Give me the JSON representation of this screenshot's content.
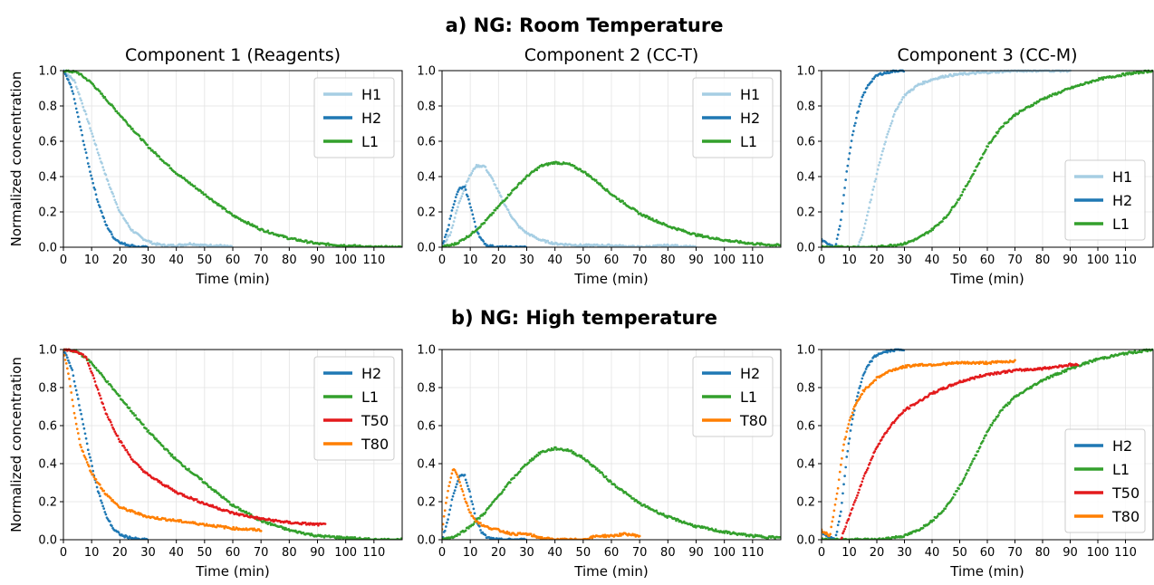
{
  "figure": {
    "row_titles": [
      "a) NG: Room Temperature",
      "b) NG: High temperature"
    ]
  },
  "colors": {
    "H1": "#a6cee3",
    "H2": "#1f78b4",
    "L1": "#33a02c",
    "T50": "#e31a1c",
    "T80": "#ff7f00"
  },
  "chart_data": [
    {
      "type": "scatter",
      "title": "Component 1 (Reagents)",
      "xlabel": "Time (min)",
      "ylabel": "Normalized concentration",
      "xlim": [
        0,
        120
      ],
      "ylim": [
        0,
        1
      ],
      "xticks": [
        0,
        10,
        20,
        30,
        40,
        50,
        60,
        70,
        80,
        90,
        100,
        110
      ],
      "yticks": [
        0.0,
        0.2,
        0.4,
        0.6,
        0.8,
        1.0
      ],
      "grid": true,
      "legend": "top-right",
      "series": [
        {
          "name": "H1",
          "x": [
            0,
            4,
            8,
            12,
            16,
            20,
            24,
            28,
            32,
            36,
            40,
            45,
            50,
            55,
            60
          ],
          "y": [
            1.0,
            0.94,
            0.75,
            0.55,
            0.36,
            0.2,
            0.1,
            0.05,
            0.02,
            0.01,
            0.01,
            0.02,
            0.01,
            0.01,
            0.0
          ]
        },
        {
          "name": "H2",
          "x": [
            0,
            3,
            6,
            9,
            12,
            15,
            18,
            21,
            24,
            27,
            30
          ],
          "y": [
            1.0,
            0.9,
            0.68,
            0.46,
            0.27,
            0.13,
            0.05,
            0.02,
            0.01,
            0.0,
            0.0
          ]
        },
        {
          "name": "L1",
          "x": [
            0,
            5,
            10,
            20,
            30,
            40,
            50,
            60,
            70,
            80,
            90,
            100,
            110,
            120
          ],
          "y": [
            1.0,
            0.99,
            0.93,
            0.75,
            0.57,
            0.42,
            0.3,
            0.18,
            0.1,
            0.05,
            0.02,
            0.01,
            0.0,
            0.0
          ]
        }
      ]
    },
    {
      "type": "scatter",
      "title": "Component 2 (CC-T)",
      "xlabel": "Time (min)",
      "ylabel": "",
      "xlim": [
        0,
        120
      ],
      "ylim": [
        0,
        1
      ],
      "xticks": [
        0,
        10,
        20,
        30,
        40,
        50,
        60,
        70,
        80,
        90,
        100,
        110
      ],
      "yticks": [
        0.0,
        0.2,
        0.4,
        0.6,
        0.8,
        1.0
      ],
      "grid": true,
      "legend": "top-right",
      "series": [
        {
          "name": "H1",
          "x": [
            0,
            3,
            6,
            9,
            12,
            15,
            18,
            21,
            24,
            27,
            30,
            35,
            40,
            50,
            60,
            70,
            80,
            90
          ],
          "y": [
            0.0,
            0.08,
            0.25,
            0.38,
            0.46,
            0.46,
            0.38,
            0.28,
            0.19,
            0.12,
            0.08,
            0.04,
            0.02,
            0.01,
            0.01,
            0.0,
            0.01,
            0.0
          ]
        },
        {
          "name": "H2",
          "x": [
            0,
            2,
            4,
            6,
            8,
            10,
            12,
            14,
            16,
            20,
            25,
            30
          ],
          "y": [
            0.0,
            0.1,
            0.24,
            0.33,
            0.34,
            0.24,
            0.11,
            0.04,
            0.01,
            0.0,
            0.0,
            0.0
          ]
        },
        {
          "name": "L1",
          "x": [
            0,
            5,
            10,
            15,
            20,
            25,
            30,
            35,
            40,
            45,
            50,
            55,
            60,
            70,
            80,
            90,
            100,
            110,
            120
          ],
          "y": [
            0.0,
            0.02,
            0.07,
            0.14,
            0.23,
            0.32,
            0.4,
            0.46,
            0.48,
            0.47,
            0.43,
            0.37,
            0.3,
            0.19,
            0.12,
            0.07,
            0.04,
            0.02,
            0.01
          ]
        }
      ]
    },
    {
      "type": "scatter",
      "title": "Component 3 (CC-M)",
      "xlabel": "Time (min)",
      "ylabel": "",
      "xlim": [
        0,
        120
      ],
      "ylim": [
        0,
        1
      ],
      "xticks": [
        0,
        10,
        20,
        30,
        40,
        50,
        60,
        70,
        80,
        90,
        100,
        110
      ],
      "yticks": [
        0.0,
        0.2,
        0.4,
        0.6,
        0.8,
        1.0
      ],
      "grid": true,
      "legend": "bottom-right",
      "series": [
        {
          "name": "H1",
          "x": [
            13,
            15,
            18,
            21,
            24,
            27,
            30,
            35,
            40,
            45,
            50,
            60,
            70,
            80,
            90
          ],
          "y": [
            0.0,
            0.08,
            0.28,
            0.48,
            0.65,
            0.78,
            0.86,
            0.92,
            0.95,
            0.97,
            0.98,
            0.99,
            1.0,
            1.0,
            1.0
          ]
        },
        {
          "name": "H2",
          "x": [
            0,
            3,
            5,
            7,
            9,
            11,
            13,
            15,
            17,
            19,
            21,
            24,
            27,
            30
          ],
          "y": [
            0.04,
            0.01,
            0.0,
            0.15,
            0.42,
            0.62,
            0.76,
            0.86,
            0.92,
            0.96,
            0.98,
            0.99,
            1.0,
            1.0
          ]
        },
        {
          "name": "L1",
          "x": [
            0,
            10,
            20,
            30,
            35,
            40,
            45,
            50,
            55,
            60,
            65,
            70,
            80,
            90,
            100,
            110,
            120
          ],
          "y": [
            0.0,
            0.0,
            0.0,
            0.02,
            0.05,
            0.1,
            0.17,
            0.28,
            0.42,
            0.57,
            0.68,
            0.75,
            0.84,
            0.9,
            0.95,
            0.98,
            1.0
          ]
        }
      ]
    },
    {
      "type": "scatter",
      "title": "",
      "xlabel": "Time (min)",
      "ylabel": "Normalized concentration",
      "xlim": [
        0,
        120
      ],
      "ylim": [
        0,
        1
      ],
      "xticks": [
        0,
        10,
        20,
        30,
        40,
        50,
        60,
        70,
        80,
        90,
        100,
        110
      ],
      "yticks": [
        0.0,
        0.2,
        0.4,
        0.6,
        0.8,
        1.0
      ],
      "grid": true,
      "legend": "top-right",
      "series": [
        {
          "name": "H2",
          "x": [
            0,
            3,
            6,
            9,
            12,
            15,
            18,
            21,
            24,
            27,
            30
          ],
          "y": [
            1.0,
            0.9,
            0.68,
            0.46,
            0.27,
            0.13,
            0.05,
            0.02,
            0.01,
            0.0,
            0.0
          ]
        },
        {
          "name": "L1",
          "x": [
            0,
            5,
            10,
            20,
            30,
            40,
            50,
            60,
            70,
            80,
            90,
            100,
            110,
            120
          ],
          "y": [
            1.0,
            0.99,
            0.93,
            0.75,
            0.57,
            0.42,
            0.3,
            0.18,
            0.1,
            0.05,
            0.02,
            0.01,
            0.0,
            0.0
          ]
        },
        {
          "name": "T50",
          "x": [
            0,
            5,
            8,
            10,
            15,
            20,
            25,
            30,
            40,
            50,
            60,
            70,
            80,
            90,
            93
          ],
          "y": [
            1.0,
            0.99,
            0.96,
            0.88,
            0.67,
            0.52,
            0.41,
            0.34,
            0.25,
            0.19,
            0.14,
            0.11,
            0.09,
            0.08,
            0.08
          ]
        },
        {
          "name": "T80",
          "x": [
            0,
            2,
            4,
            6,
            8,
            10,
            15,
            20,
            30,
            40,
            50,
            60,
            70
          ],
          "y": [
            1.0,
            0.85,
            0.65,
            0.5,
            0.42,
            0.35,
            0.24,
            0.17,
            0.12,
            0.1,
            0.08,
            0.06,
            0.05
          ]
        }
      ]
    },
    {
      "type": "scatter",
      "title": "",
      "xlabel": "Time (min)",
      "ylabel": "",
      "xlim": [
        0,
        120
      ],
      "ylim": [
        0,
        1
      ],
      "xticks": [
        0,
        10,
        20,
        30,
        40,
        50,
        60,
        70,
        80,
        90,
        100,
        110
      ],
      "yticks": [
        0.0,
        0.2,
        0.4,
        0.6,
        0.8,
        1.0
      ],
      "grid": true,
      "legend": "top-right",
      "series": [
        {
          "name": "H2",
          "x": [
            0,
            2,
            4,
            6,
            8,
            10,
            12,
            14,
            16,
            20,
            25,
            30
          ],
          "y": [
            0.0,
            0.1,
            0.24,
            0.33,
            0.34,
            0.24,
            0.11,
            0.04,
            0.01,
            0.0,
            0.0,
            0.0
          ]
        },
        {
          "name": "L1",
          "x": [
            0,
            5,
            10,
            15,
            20,
            25,
            30,
            35,
            40,
            45,
            50,
            55,
            60,
            70,
            80,
            90,
            100,
            110,
            120
          ],
          "y": [
            0.0,
            0.02,
            0.07,
            0.14,
            0.23,
            0.32,
            0.4,
            0.46,
            0.48,
            0.47,
            0.43,
            0.37,
            0.3,
            0.19,
            0.12,
            0.07,
            0.04,
            0.02,
            0.01
          ]
        },
        {
          "name": "T80",
          "x": [
            0,
            2,
            4,
            6,
            8,
            10,
            12,
            15,
            20,
            25,
            30,
            35,
            40,
            50,
            55,
            60,
            65,
            70
          ],
          "y": [
            0.05,
            0.25,
            0.38,
            0.32,
            0.22,
            0.14,
            0.1,
            0.07,
            0.05,
            0.03,
            0.03,
            0.01,
            0.0,
            0.0,
            0.02,
            0.02,
            0.03,
            0.02
          ]
        }
      ]
    },
    {
      "type": "scatter",
      "title": "",
      "xlabel": "Time (min)",
      "ylabel": "",
      "xlim": [
        0,
        120
      ],
      "ylim": [
        0,
        1
      ],
      "xticks": [
        0,
        10,
        20,
        30,
        40,
        50,
        60,
        70,
        80,
        90,
        100,
        110
      ],
      "yticks": [
        0.0,
        0.2,
        0.4,
        0.6,
        0.8,
        1.0
      ],
      "grid": true,
      "legend": "bottom-right",
      "series": [
        {
          "name": "H2",
          "x": [
            0,
            3,
            5,
            7,
            9,
            11,
            13,
            15,
            17,
            19,
            21,
            24,
            27,
            30
          ],
          "y": [
            0.04,
            0.01,
            0.0,
            0.15,
            0.42,
            0.62,
            0.76,
            0.86,
            0.92,
            0.96,
            0.98,
            0.99,
            1.0,
            1.0
          ]
        },
        {
          "name": "L1",
          "x": [
            0,
            10,
            20,
            30,
            35,
            40,
            45,
            50,
            55,
            60,
            65,
            70,
            80,
            90,
            100,
            110,
            120
          ],
          "y": [
            0.0,
            0.0,
            0.0,
            0.02,
            0.05,
            0.1,
            0.17,
            0.28,
            0.42,
            0.57,
            0.68,
            0.75,
            0.84,
            0.9,
            0.95,
            0.98,
            1.0
          ]
        },
        {
          "name": "T50",
          "x": [
            7,
            10,
            15,
            20,
            25,
            30,
            40,
            50,
            60,
            70,
            80,
            90,
            93
          ],
          "y": [
            0.0,
            0.12,
            0.32,
            0.49,
            0.6,
            0.68,
            0.77,
            0.83,
            0.87,
            0.89,
            0.9,
            0.92,
            0.92
          ]
        },
        {
          "name": "T80",
          "x": [
            0,
            3,
            6,
            8,
            10,
            12,
            15,
            20,
            25,
            30,
            35,
            40,
            50,
            60,
            70
          ],
          "y": [
            0.05,
            0.02,
            0.28,
            0.5,
            0.62,
            0.7,
            0.78,
            0.85,
            0.89,
            0.91,
            0.92,
            0.92,
            0.93,
            0.93,
            0.94
          ]
        }
      ]
    }
  ]
}
